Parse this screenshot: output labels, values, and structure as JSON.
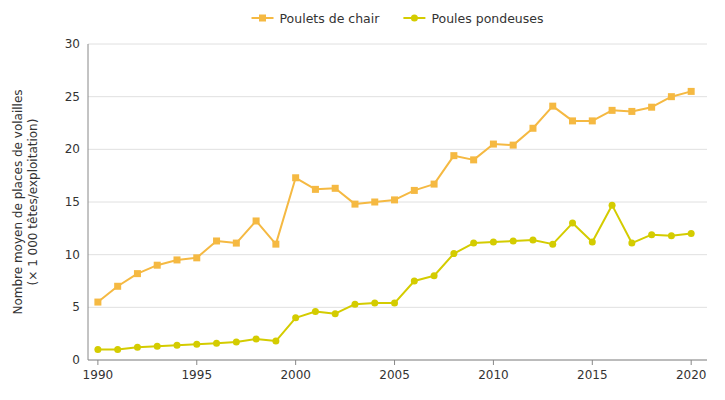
{
  "chart_data": {
    "type": "line",
    "y_label": [
      "Nombre moyen de places de volailles",
      "(× 1 000 têtes/exploitation)"
    ],
    "x": [
      1990,
      1991,
      1992,
      1993,
      1994,
      1995,
      1996,
      1997,
      1998,
      1999,
      2000,
      2001,
      2002,
      2003,
      2004,
      2005,
      2006,
      2007,
      2008,
      2009,
      2010,
      2011,
      2012,
      2013,
      2014,
      2015,
      2016,
      2017,
      2018,
      2019,
      2020
    ],
    "series": [
      {
        "name": "Poulets de chair",
        "color": "#f5b942",
        "marker": "square",
        "values": [
          5.5,
          7.0,
          8.2,
          9.0,
          9.5,
          9.7,
          11.3,
          11.1,
          13.2,
          11.0,
          17.3,
          16.2,
          16.3,
          14.8,
          15.0,
          15.2,
          16.1,
          16.7,
          19.4,
          19.0,
          20.5,
          20.4,
          22.0,
          24.1,
          22.7,
          22.7,
          23.7,
          23.6,
          24.0,
          25.0,
          25.5
        ]
      },
      {
        "name": "Poules pondeuses",
        "color": "#d4cc00",
        "marker": "circle",
        "values": [
          1.0,
          1.0,
          1.2,
          1.3,
          1.4,
          1.5,
          1.6,
          1.7,
          2.0,
          1.8,
          4.0,
          4.6,
          4.4,
          5.3,
          5.4,
          5.4,
          7.5,
          8.0,
          10.1,
          11.1,
          11.2,
          11.3,
          11.4,
          11.0,
          13.0,
          11.2,
          14.7,
          11.1,
          11.9,
          11.8,
          12.0
        ]
      }
    ],
    "xlim": [
      1989.5,
      2020.8
    ],
    "xticks": [
      1990,
      1995,
      2000,
      2005,
      2010,
      2015,
      2020
    ],
    "ylim": [
      0,
      30
    ],
    "yticks": [
      0,
      5,
      10,
      15,
      20,
      25,
      30
    ],
    "grid": true,
    "legend": "top"
  }
}
